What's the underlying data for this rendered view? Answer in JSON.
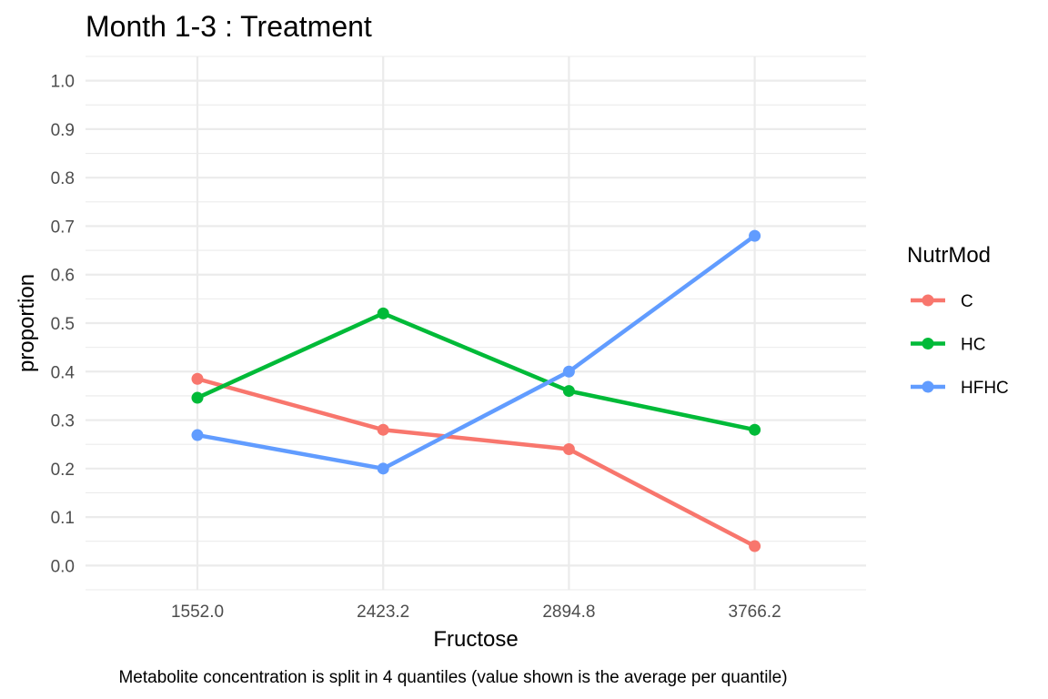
{
  "chart_data": {
    "type": "line",
    "title": "Month 1-3 : Treatment",
    "xlabel": "Fructose",
    "ylabel": "proportion",
    "caption": "Metabolite concentration is split in 4 quantiles (value shown is the average per quantile)",
    "categories": [
      "1552.0",
      "2423.2",
      "2894.8",
      "3766.2"
    ],
    "yticks": [
      "0.0",
      "0.1",
      "0.2",
      "0.3",
      "0.4",
      "0.5",
      "0.6",
      "0.7",
      "0.8",
      "0.9",
      "1.0"
    ],
    "ylim": [
      -0.05,
      1.05
    ],
    "grid": true,
    "legend": {
      "title": "NutrMod",
      "position": "right"
    },
    "series": [
      {
        "name": "C",
        "color": "#F8766D",
        "values": [
          0.385,
          0.28,
          0.24,
          0.04
        ]
      },
      {
        "name": "HC",
        "color": "#00BA38",
        "values": [
          0.346,
          0.52,
          0.36,
          0.28
        ]
      },
      {
        "name": "HFHC",
        "color": "#619CFF",
        "values": [
          0.269,
          0.2,
          0.4,
          0.68
        ]
      }
    ]
  }
}
